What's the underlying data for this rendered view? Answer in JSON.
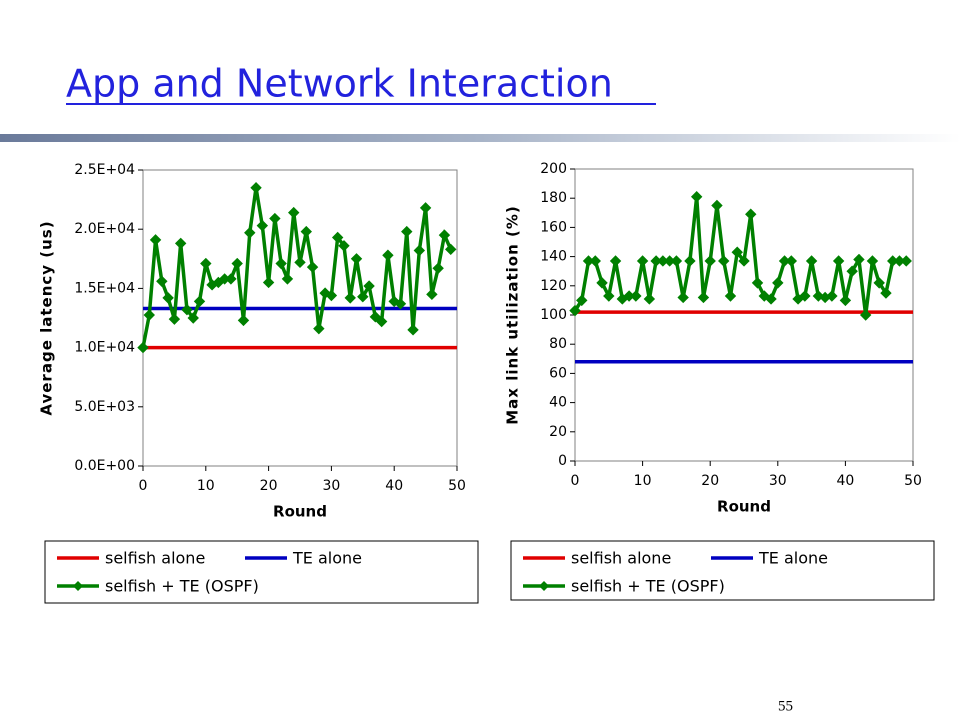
{
  "title": "App and Network Interaction",
  "page_number": "55",
  "chart_data": [
    {
      "type": "line",
      "y_label": "Average latency (us)",
      "x_label": "Round",
      "xlim": [
        0,
        50
      ],
      "xticks": [
        0,
        10,
        20,
        30,
        40,
        50
      ],
      "ylim": [
        0,
        25000
      ],
      "yticks": [
        {
          "value": 0,
          "label": "0.0E+00"
        },
        {
          "value": 5000,
          "label": "5.0E+03"
        },
        {
          "value": 10000,
          "label": "1.0E+04"
        },
        {
          "value": 15000,
          "label": "1.5E+04"
        },
        {
          "value": 20000,
          "label": "2.0E+04"
        },
        {
          "value": 25000,
          "label": "2.5E+04"
        }
      ],
      "series": [
        {
          "name": "selfish alone",
          "color": "#e00000",
          "x": [
            0,
            50
          ],
          "values": [
            10000,
            10000
          ]
        },
        {
          "name": "TE alone",
          "color": "#0000c0",
          "x": [
            0,
            50
          ],
          "values": [
            13300,
            13300
          ]
        },
        {
          "name": "selfish + TE (OSPF)",
          "color": "#008000",
          "marker": "diamond",
          "x": [
            0,
            1,
            2,
            3,
            4,
            5,
            6,
            7,
            8,
            9,
            10,
            11,
            12,
            13,
            14,
            15,
            16,
            17,
            18,
            19,
            20,
            21,
            22,
            23,
            24,
            25,
            26,
            27,
            28,
            29,
            30,
            31,
            32,
            33,
            34,
            35,
            36,
            37,
            38,
            39,
            40,
            41,
            42,
            43,
            44,
            45,
            46,
            47,
            48,
            49
          ],
          "values": [
            10000,
            12750,
            19100,
            15600,
            14200,
            12400,
            18800,
            13200,
            12500,
            13900,
            17100,
            15300,
            15500,
            15800,
            15800,
            17100,
            12300,
            19700,
            23500,
            20300,
            15500,
            20900,
            17100,
            15800,
            21400,
            17200,
            19800,
            16800,
            11600,
            14600,
            14400,
            19300,
            18600,
            14200,
            17500,
            14300,
            15200,
            12600,
            12200,
            17800,
            13900,
            13700,
            19800,
            11500,
            18200,
            21800,
            14500,
            16700,
            19500,
            18300
          ]
        }
      ]
    },
    {
      "type": "line",
      "y_label": "Max link utilization (%)",
      "x_label": "Round",
      "xlim": [
        0,
        50
      ],
      "xticks": [
        0,
        10,
        20,
        30,
        40,
        50
      ],
      "ylim": [
        0,
        200
      ],
      "yticks": [
        0,
        20,
        40,
        60,
        80,
        100,
        120,
        140,
        160,
        180,
        200
      ],
      "series": [
        {
          "name": "selfish alone",
          "color": "#e00000",
          "x": [
            0,
            50
          ],
          "values": [
            102,
            102
          ]
        },
        {
          "name": "TE alone",
          "color": "#0000c0",
          "x": [
            0,
            50
          ],
          "values": [
            68,
            68
          ]
        },
        {
          "name": "selfish + TE (OSPF)",
          "color": "#008000",
          "marker": "diamond",
          "x": [
            0,
            1,
            2,
            3,
            4,
            5,
            6,
            7,
            8,
            9,
            10,
            11,
            12,
            13,
            14,
            15,
            16,
            17,
            18,
            19,
            20,
            21,
            22,
            23,
            24,
            25,
            26,
            27,
            28,
            29,
            30,
            31,
            32,
            33,
            34,
            35,
            36,
            37,
            38,
            39,
            40,
            41,
            42,
            43,
            44,
            45,
            46,
            47,
            48,
            49
          ],
          "values": [
            103,
            110,
            137,
            137,
            122,
            113,
            137,
            111,
            113,
            113,
            137,
            111,
            137,
            137,
            137,
            137,
            112,
            137,
            181,
            112,
            137,
            175,
            137,
            113,
            143,
            137,
            169,
            122,
            113,
            111,
            122,
            137,
            137,
            111,
            113,
            137,
            113,
            112,
            113,
            137,
            110,
            130,
            138,
            100,
            137,
            122,
            115,
            137,
            137,
            137
          ]
        }
      ]
    }
  ]
}
